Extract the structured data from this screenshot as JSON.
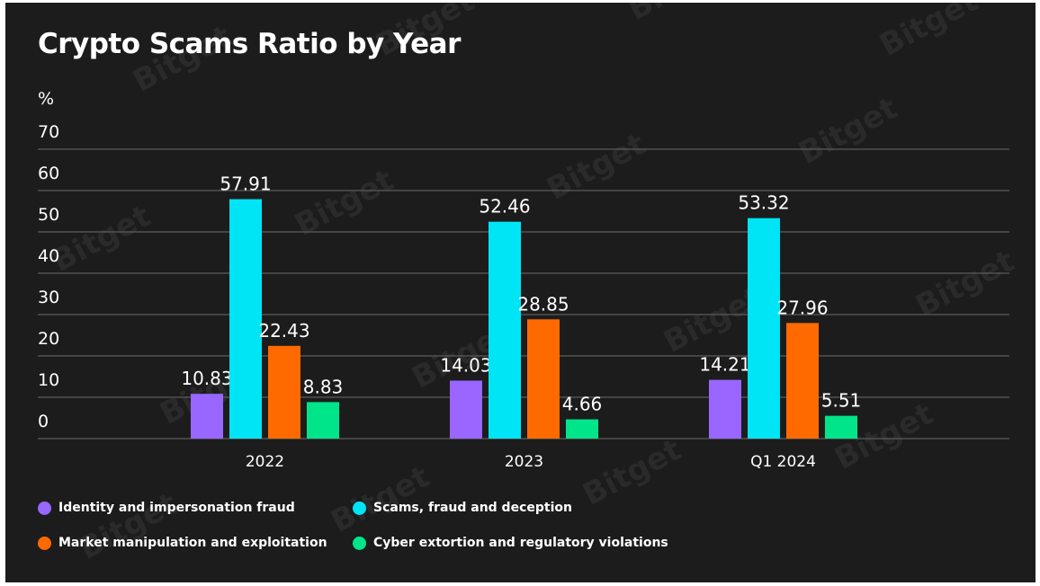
{
  "chart_data": {
    "type": "bar",
    "title": "Crypto Scams Ratio by Year",
    "ylabel": "%",
    "xlabel": "",
    "ylim": [
      0,
      70
    ],
    "yticks": [
      0,
      10,
      20,
      30,
      40,
      50,
      60,
      70
    ],
    "categories": [
      "2022",
      "2023",
      "Q1 2024"
    ],
    "series": [
      {
        "name": "Identity and impersonation fraud",
        "color": "#9966ff",
        "values": [
          10.83,
          14.03,
          14.21
        ]
      },
      {
        "name": "Scams, fraud and deception",
        "color": "#00e5f5",
        "values": [
          57.91,
          52.46,
          53.32
        ]
      },
      {
        "name": "Market manipulation and exploitation",
        "color": "#ff6a00",
        "values": [
          22.43,
          28.85,
          27.96
        ]
      },
      {
        "name": "Cyber extortion and regulatory violations",
        "color": "#00e58a",
        "values": [
          8.83,
          4.66,
          5.51
        ]
      }
    ],
    "grid": true,
    "legend_position": "bottom"
  },
  "watermark": "Bitget"
}
